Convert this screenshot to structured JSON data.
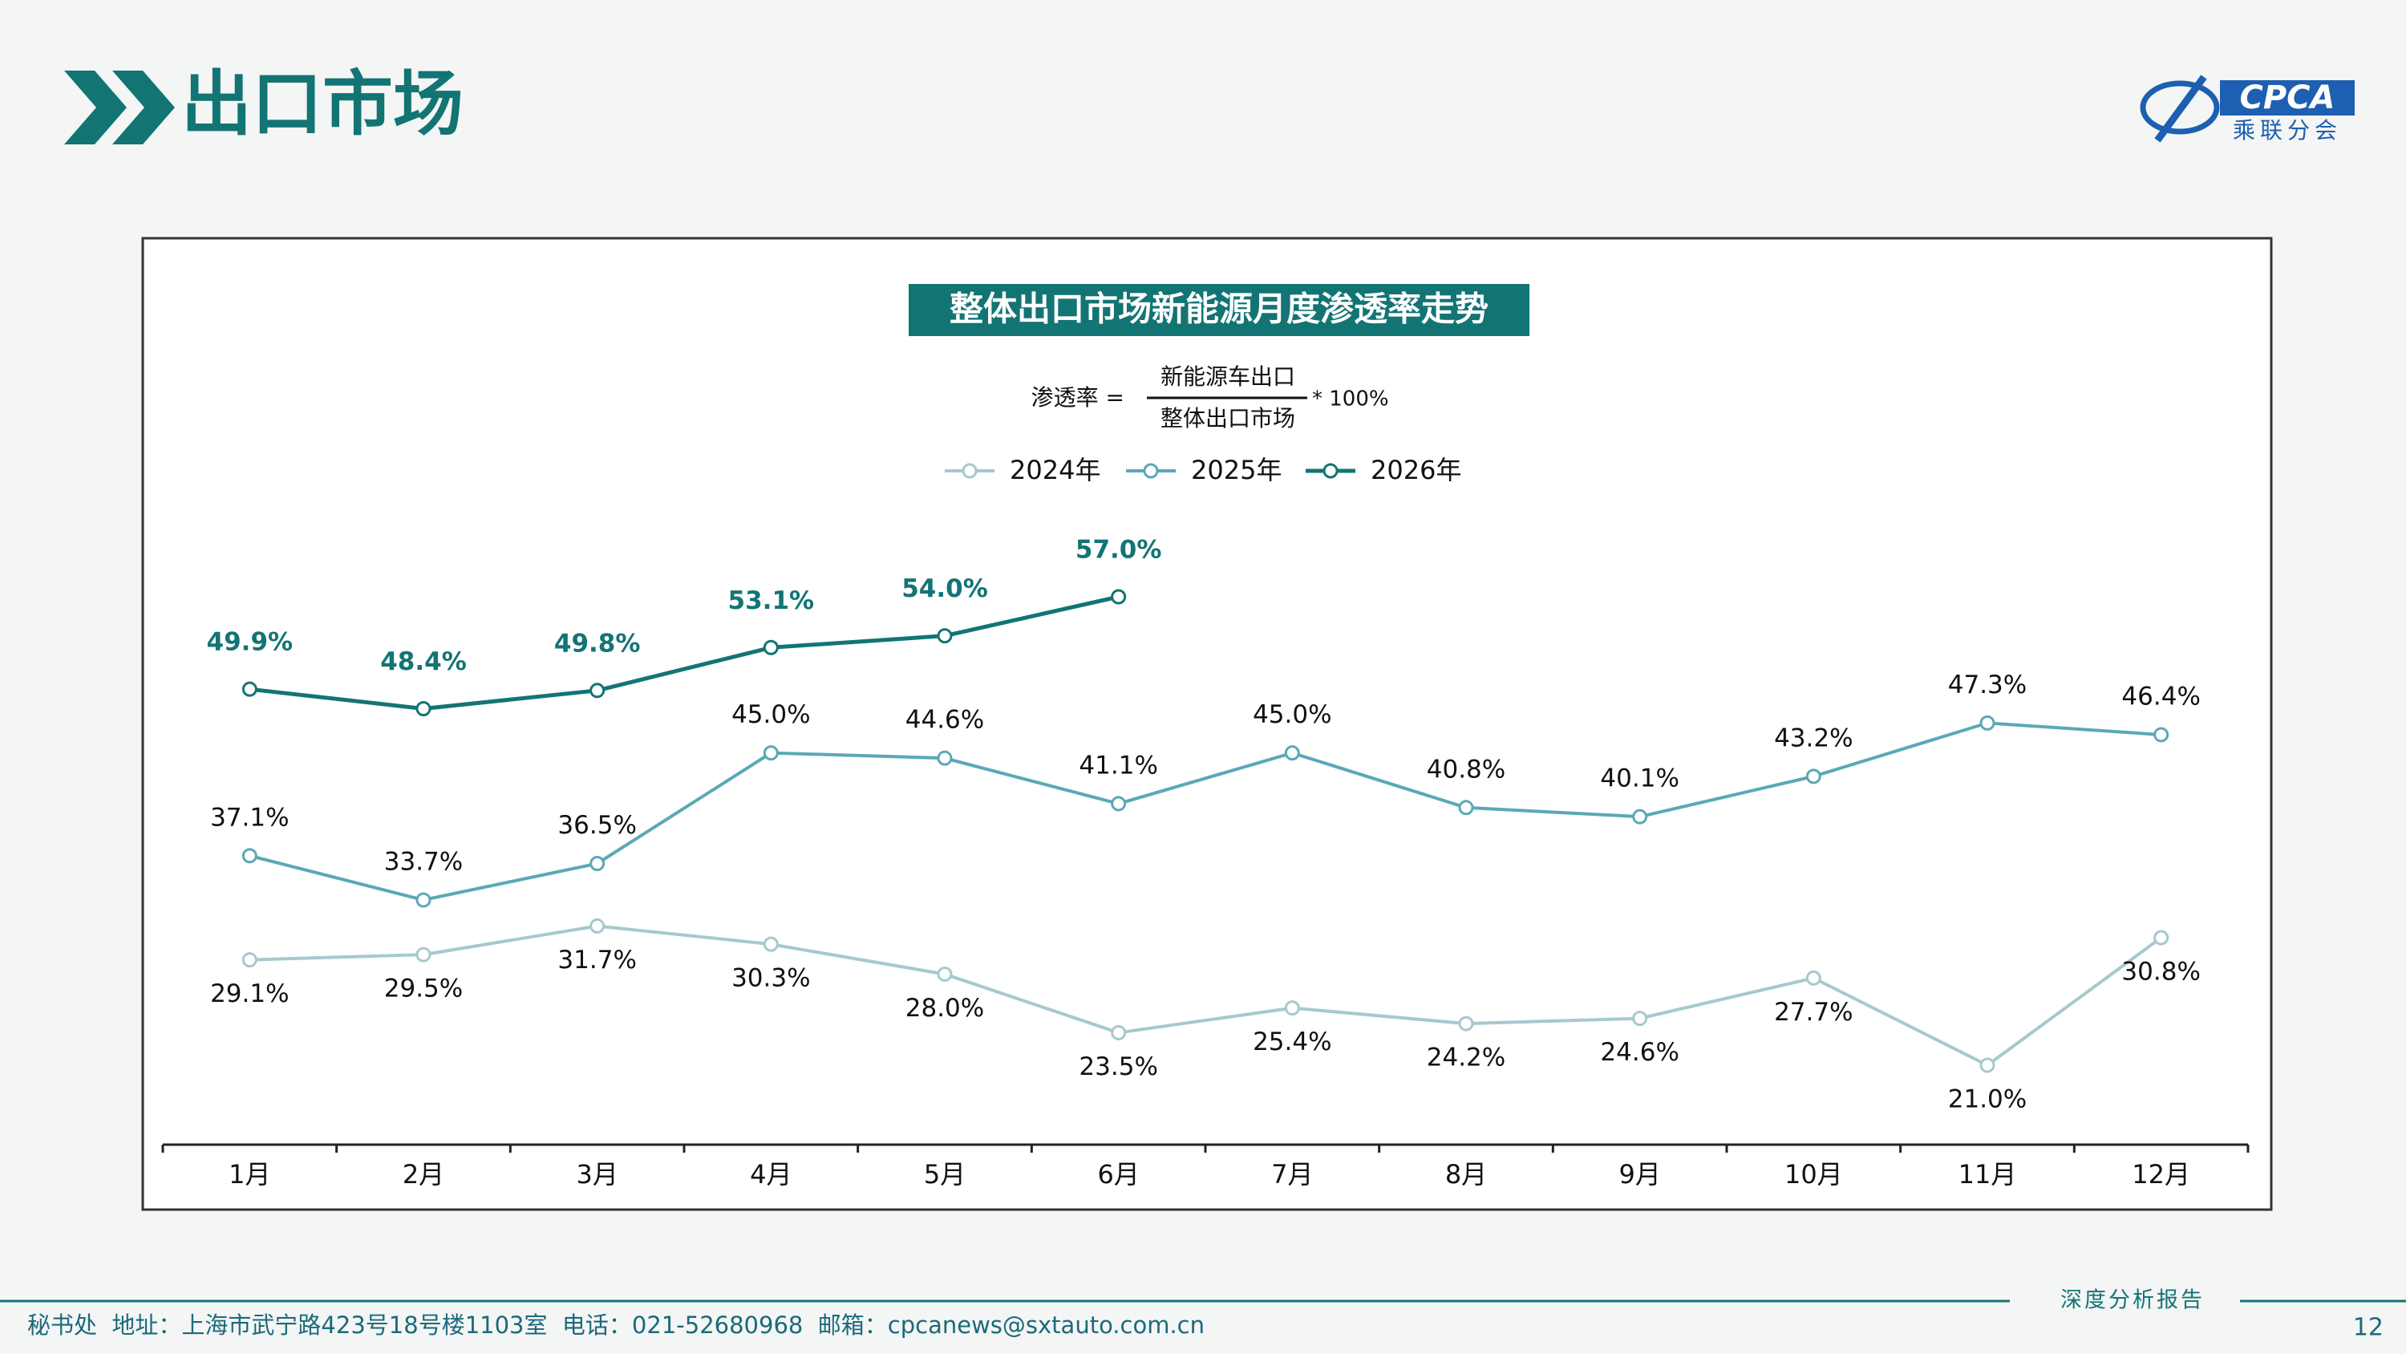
{
  "header": {
    "title": "出口市场",
    "logo_text": "CPCA",
    "logo_subtitle": "乘联分会"
  },
  "chart_data": {
    "type": "line",
    "title": "整体出口市场新能源月度渗透率走势",
    "formula": {
      "left": "渗透率 =",
      "numerator": "新能源车出口",
      "denominator": "整体出口市场",
      "right": "* 100%"
    },
    "categories": [
      "1月",
      "2月",
      "3月",
      "4月",
      "5月",
      "6月",
      "7月",
      "8月",
      "9月",
      "10月",
      "11月",
      "12月"
    ],
    "series": [
      {
        "name": "2024年",
        "color": "#a6c9cd",
        "label_position": "below",
        "values": [
          29.1,
          29.5,
          31.7,
          30.3,
          28.0,
          23.5,
          25.4,
          24.2,
          24.6,
          27.7,
          21.0,
          30.8
        ],
        "value_labels": [
          "29.1%",
          "29.5%",
          "31.7%",
          "30.3%",
          "28.0%",
          "23.5%",
          "25.4%",
          "24.2%",
          "24.6%",
          "27.7%",
          "21.0%",
          "30.8%"
        ]
      },
      {
        "name": "2025年",
        "color": "#5ba8b6",
        "label_position": "above",
        "values": [
          37.1,
          33.7,
          36.5,
          45.0,
          44.6,
          41.1,
          45.0,
          40.8,
          40.1,
          43.2,
          47.3,
          46.4
        ],
        "value_labels": [
          "37.1%",
          "33.7%",
          "36.5%",
          "45.0%",
          "44.6%",
          "41.1%",
          "45.0%",
          "40.8%",
          "40.1%",
          "43.2%",
          "47.3%",
          "46.4%"
        ]
      },
      {
        "name": "2026年",
        "color": "#137474",
        "label_position": "above",
        "values": [
          49.9,
          48.4,
          49.8,
          53.1,
          54.0,
          57.0,
          null,
          null,
          null,
          null,
          null,
          null
        ],
        "value_labels": [
          "49.9%",
          "48.4%",
          "49.8%",
          "53.1%",
          "54.0%",
          "57.0%",
          null,
          null,
          null,
          null,
          null,
          null
        ]
      }
    ]
  },
  "footer": {
    "address": "秘书处  地址：上海市武宁路423号18号楼1103室  电话：021-52680968  邮箱：cpcanews@sxtauto.com.cn",
    "report": "深度分析报告",
    "page": "12"
  }
}
